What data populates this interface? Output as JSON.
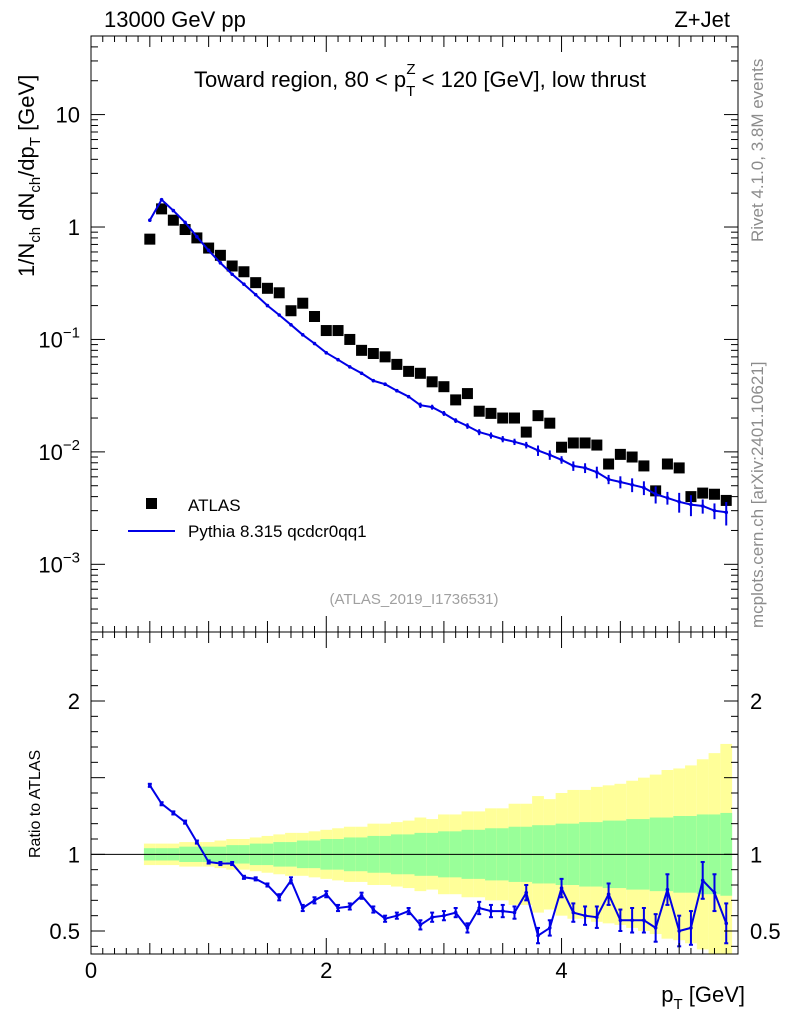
{
  "header": {
    "energy_label": "13000 GeV pp",
    "process_label": "Z+Jet"
  },
  "side_labels": {
    "rivet": "Rivet 4.1.0,  3.8M events",
    "source": "mcplots.cern.ch [arXiv:2401.10621]"
  },
  "colors": {
    "mc": "#0000e6",
    "data": "#000000",
    "band_inner": "#99ff99",
    "band_outer": "#ffff99",
    "watermark": "#a0a0a0"
  },
  "chart_data": [
    {
      "type": "scatter",
      "panel": "main",
      "title": "Toward region, 80 < p_T^Z < 120 [GeV], low thrust",
      "title_parts": {
        "before": "Toward region, 80 < p",
        "sup": "Z",
        "sub": "T",
        "after": " < 120 [GeV], low thrust"
      },
      "ylabel": "1/N_ch dN_ch/dp_T [GeV]",
      "ylabel_parts": [
        "1/N",
        "ch",
        " dN",
        "ch",
        "/dp",
        "T",
        " [GeV]"
      ],
      "yscale": "log",
      "ylim": [
        0.00025,
        50
      ],
      "xlim": [
        0,
        5.5
      ],
      "ytick_labels": [
        {
          "value": 10,
          "base": "10",
          "exp": ""
        },
        {
          "value": 1,
          "base": "1",
          "exp": ""
        },
        {
          "value": 0.1,
          "base": "10",
          "exp": "−1"
        },
        {
          "value": 0.01,
          "base": "10",
          "exp": "−2"
        },
        {
          "value": 0.001,
          "base": "10",
          "exp": "−3"
        }
      ],
      "watermark": "(ATLAS_2019_I1736531)",
      "legend": {
        "position": "lower-left",
        "data_label": "ATLAS",
        "mc_label": "Pythia 8.315 qcdcr0qq1"
      },
      "x": [
        0.5,
        0.6,
        0.7,
        0.8,
        0.9,
        1.0,
        1.1,
        1.2,
        1.3,
        1.4,
        1.5,
        1.6,
        1.7,
        1.8,
        1.9,
        2.0,
        2.1,
        2.2,
        2.3,
        2.4,
        2.5,
        2.6,
        2.7,
        2.8,
        2.9,
        3.0,
        3.1,
        3.2,
        3.3,
        3.4,
        3.5,
        3.6,
        3.7,
        3.8,
        3.9,
        4.0,
        4.1,
        4.2,
        4.3,
        4.4,
        4.5,
        4.6,
        4.7,
        4.8,
        4.9,
        5.0,
        5.1,
        5.2,
        5.3,
        5.4
      ],
      "series": [
        {
          "name": "ATLAS",
          "style": "markers",
          "values": [
            0.78,
            1.45,
            1.15,
            0.95,
            0.8,
            0.65,
            0.56,
            0.45,
            0.4,
            0.32,
            0.285,
            0.26,
            0.18,
            0.21,
            0.16,
            0.12,
            0.12,
            0.1,
            0.08,
            0.075,
            0.07,
            0.06,
            0.052,
            0.05,
            0.042,
            0.038,
            0.029,
            0.033,
            0.023,
            0.022,
            0.02,
            0.02,
            0.015,
            0.021,
            0.018,
            0.011,
            0.012,
            0.012,
            0.0115,
            0.0078,
            0.0095,
            0.009,
            0.0075,
            0.0045,
            0.0078,
            0.0072,
            0.004,
            0.0043,
            0.0042,
            0.0037
          ]
        },
        {
          "name": "Pythia 8.315 qcdcr0qq1",
          "style": "line",
          "values": [
            1.15,
            1.75,
            1.4,
            1.1,
            0.82,
            0.62,
            0.48,
            0.38,
            0.31,
            0.25,
            0.2,
            0.165,
            0.135,
            0.11,
            0.092,
            0.076,
            0.066,
            0.057,
            0.05,
            0.043,
            0.04,
            0.035,
            0.031,
            0.026,
            0.025,
            0.022,
            0.019,
            0.017,
            0.015,
            0.014,
            0.013,
            0.0123,
            0.0115,
            0.0103,
            0.0094,
            0.0085,
            0.0075,
            0.0072,
            0.0066,
            0.0057,
            0.0054,
            0.0051,
            0.0048,
            0.0042,
            0.0039,
            0.0036,
            0.0034,
            0.0033,
            0.003,
            0.0029
          ]
        }
      ]
    },
    {
      "type": "line",
      "panel": "ratio",
      "ylabel": "Ratio to ATLAS",
      "xlabel": "p_T [GeV]",
      "xlabel_parts": {
        "base": "p",
        "sub": "T",
        "after": " [GeV]"
      },
      "ylim": [
        0.35,
        2.45
      ],
      "xlim": [
        0,
        5.5
      ],
      "ytick_labels": [
        "0.5",
        "1",
        "2"
      ],
      "xtick_labels": [
        "0",
        "2",
        "4"
      ],
      "reference_line": 1,
      "x": [
        0.5,
        0.6,
        0.7,
        0.8,
        0.9,
        1.0,
        1.1,
        1.2,
        1.3,
        1.4,
        1.5,
        1.6,
        1.7,
        1.8,
        1.9,
        2.0,
        2.1,
        2.2,
        2.3,
        2.4,
        2.5,
        2.6,
        2.7,
        2.8,
        2.9,
        3.0,
        3.1,
        3.2,
        3.3,
        3.4,
        3.5,
        3.6,
        3.7,
        3.8,
        3.9,
        4.0,
        4.1,
        4.2,
        4.3,
        4.4,
        4.5,
        4.6,
        4.7,
        4.8,
        4.9,
        5.0,
        5.1,
        5.2,
        5.3,
        5.4
      ],
      "series": [
        {
          "name": "Pythia 8.315 qcdcr0qq1",
          "values": [
            1.45,
            1.33,
            1.27,
            1.21,
            1.08,
            0.95,
            0.94,
            0.94,
            0.85,
            0.84,
            0.8,
            0.72,
            0.83,
            0.65,
            0.7,
            0.74,
            0.65,
            0.66,
            0.73,
            0.64,
            0.58,
            0.6,
            0.63,
            0.54,
            0.59,
            0.6,
            0.62,
            0.52,
            0.65,
            0.63,
            0.63,
            0.62,
            0.75,
            0.47,
            0.52,
            0.78,
            0.62,
            0.6,
            0.59,
            0.74,
            0.57,
            0.57,
            0.57,
            0.52,
            0.77,
            0.5,
            0.52,
            0.83,
            0.75,
            0.55
          ],
          "errors": [
            0.01,
            0.01,
            0.01,
            0.01,
            0.01,
            0.01,
            0.01,
            0.01,
            0.01,
            0.01,
            0.01,
            0.02,
            0.02,
            0.02,
            0.02,
            0.02,
            0.02,
            0.02,
            0.02,
            0.02,
            0.02,
            0.02,
            0.02,
            0.03,
            0.03,
            0.03,
            0.03,
            0.03,
            0.04,
            0.04,
            0.04,
            0.04,
            0.05,
            0.05,
            0.05,
            0.06,
            0.06,
            0.06,
            0.07,
            0.07,
            0.07,
            0.08,
            0.08,
            0.09,
            0.1,
            0.1,
            0.11,
            0.12,
            0.12,
            0.13
          ]
        }
      ],
      "band_inner": [
        0.04,
        0.04,
        0.04,
        0.05,
        0.05,
        0.05,
        0.05,
        0.06,
        0.06,
        0.07,
        0.07,
        0.08,
        0.08,
        0.09,
        0.09,
        0.1,
        0.1,
        0.11,
        0.11,
        0.12,
        0.12,
        0.13,
        0.13,
        0.14,
        0.14,
        0.15,
        0.15,
        0.16,
        0.16,
        0.17,
        0.17,
        0.18,
        0.18,
        0.19,
        0.19,
        0.2,
        0.2,
        0.21,
        0.21,
        0.22,
        0.22,
        0.23,
        0.23,
        0.24,
        0.24,
        0.25,
        0.25,
        0.26,
        0.26,
        0.27
      ],
      "band_outer": [
        0.07,
        0.07,
        0.07,
        0.08,
        0.08,
        0.08,
        0.09,
        0.1,
        0.1,
        0.11,
        0.12,
        0.13,
        0.14,
        0.14,
        0.15,
        0.16,
        0.17,
        0.18,
        0.18,
        0.2,
        0.2,
        0.21,
        0.22,
        0.24,
        0.23,
        0.26,
        0.26,
        0.28,
        0.28,
        0.3,
        0.3,
        0.33,
        0.33,
        0.38,
        0.36,
        0.4,
        0.42,
        0.42,
        0.44,
        0.45,
        0.46,
        0.48,
        0.5,
        0.52,
        0.55,
        0.56,
        0.58,
        0.62,
        0.66,
        0.72
      ]
    }
  ]
}
